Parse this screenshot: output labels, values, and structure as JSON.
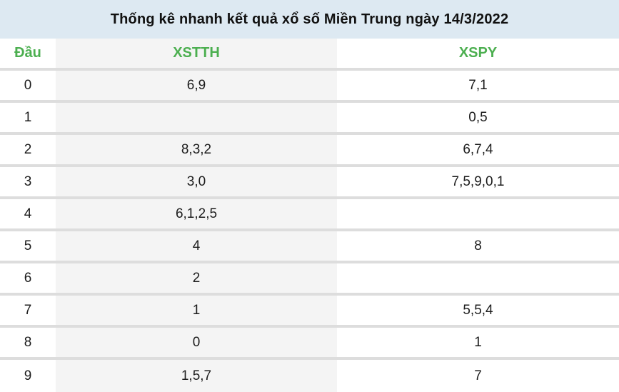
{
  "title": "Thống kê nhanh kết quả xổ số Miền Trung ngày 14/3/2022",
  "table": {
    "columns": [
      {
        "key": "dau",
        "label": "Đầu"
      },
      {
        "key": "xstth",
        "label": "XSTTH"
      },
      {
        "key": "xspy",
        "label": "XSPY"
      }
    ],
    "rows": [
      {
        "dau": "0",
        "xstth": "6,9",
        "xspy": "7,1"
      },
      {
        "dau": "1",
        "xstth": "",
        "xspy": "0,5"
      },
      {
        "dau": "2",
        "xstth": "8,3,2",
        "xspy": "6,7,4"
      },
      {
        "dau": "3",
        "xstth": "3,0",
        "xspy": "7,5,9,0,1"
      },
      {
        "dau": "4",
        "xstth": "6,1,2,5",
        "xspy": ""
      },
      {
        "dau": "5",
        "xstth": "4",
        "xspy": "8"
      },
      {
        "dau": "6",
        "xstth": "2",
        "xspy": ""
      },
      {
        "dau": "7",
        "xstth": "1",
        "xspy": "5,5,4"
      },
      {
        "dau": "8",
        "xstth": "0",
        "xspy": "1"
      },
      {
        "dau": "9",
        "xstth": "1,5,7",
        "xspy": "7"
      }
    ]
  },
  "colors": {
    "title_bar_bg": "#dde9f2",
    "header_text": "#4caf50",
    "striped_column_bg": "#f4f4f4",
    "row_separator": "#dddddd",
    "cell_text": "#1c1c1c"
  }
}
